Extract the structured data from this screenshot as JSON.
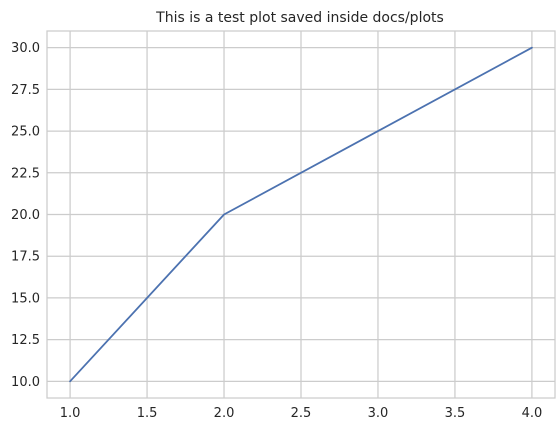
{
  "chart_data": {
    "type": "line",
    "title": "This is a test plot saved inside docs/plots",
    "xlabel": "",
    "ylabel": "",
    "xlim": [
      0.85,
      4.15
    ],
    "ylim": [
      9.0,
      31.0
    ],
    "grid": true,
    "x_ticks": [
      1.0,
      1.5,
      2.0,
      2.5,
      3.0,
      3.5,
      4.0
    ],
    "x_tick_labels": [
      "1.0",
      "1.5",
      "2.0",
      "2.5",
      "3.0",
      "3.5",
      "4.0"
    ],
    "y_ticks": [
      10.0,
      12.5,
      15.0,
      17.5,
      20.0,
      22.5,
      25.0,
      27.5,
      30.0
    ],
    "y_tick_labels": [
      "10.0",
      "12.5",
      "15.0",
      "17.5",
      "20.0",
      "22.5",
      "25.0",
      "27.5",
      "30.0"
    ],
    "series": [
      {
        "x": [
          1,
          2,
          3,
          4
        ],
        "y": [
          10,
          20,
          25,
          30
        ],
        "color": "#4c72b0"
      }
    ]
  },
  "colors": {
    "grid": "#cccccc",
    "axis": "#cccccc",
    "text": "#262626",
    "background": "#ffffff"
  }
}
